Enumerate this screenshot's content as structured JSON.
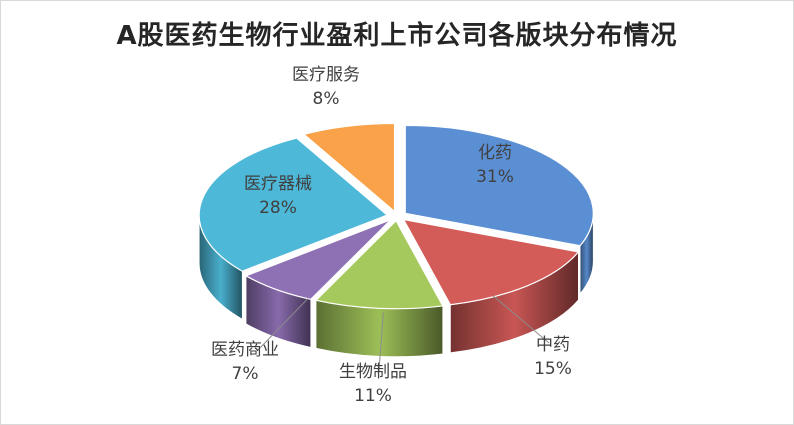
{
  "chart_data": {
    "type": "pie",
    "title": "A股医药生物行业盈利上市公司各版块分布情况",
    "slices": [
      {
        "name": "化药",
        "value": 31,
        "label": "31%",
        "color": "#5b8fd3"
      },
      {
        "name": "中药",
        "value": 15,
        "label": "15%",
        "color": "#d35b58"
      },
      {
        "name": "生物制品",
        "value": 11,
        "label": "11%",
        "color": "#a5c95c"
      },
      {
        "name": "医药商业",
        "value": 7,
        "label": "7%",
        "color": "#8e70b4"
      },
      {
        "name": "医疗器械",
        "value": 28,
        "label": "28%",
        "color": "#4db8d8"
      },
      {
        "name": "医疗服务",
        "value": 8,
        "label": "8%",
        "color": "#f9a24a"
      }
    ]
  }
}
